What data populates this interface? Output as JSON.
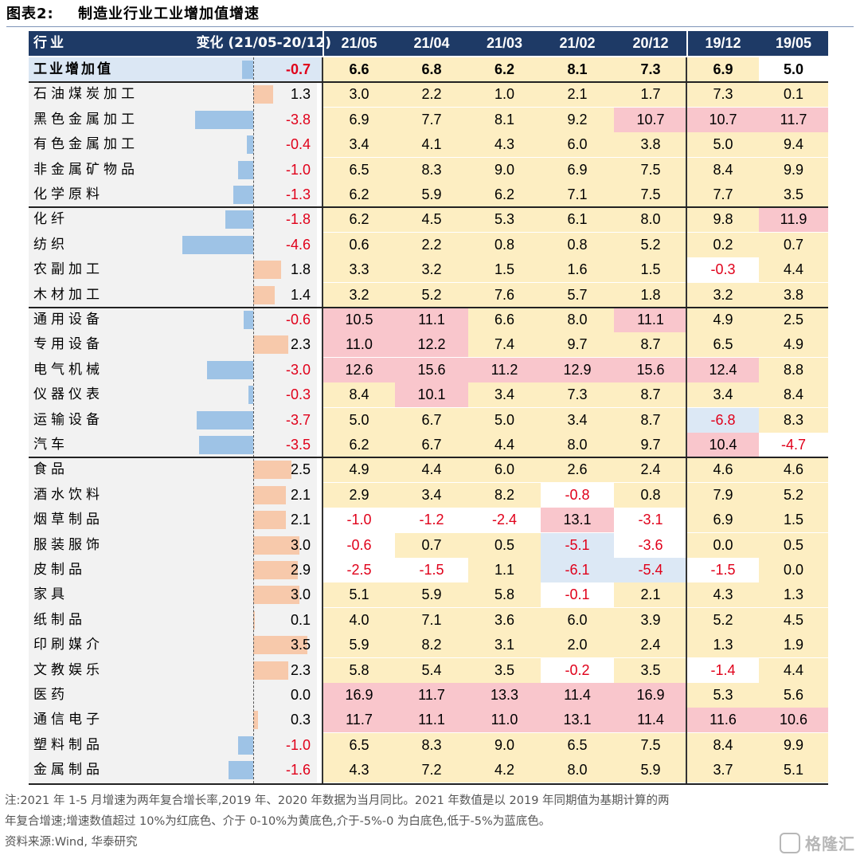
{
  "title": {
    "label": "图表2:",
    "text": "制造业行业工业增加值增速"
  },
  "header": {
    "industry": "行业",
    "change": "变化 (21/05-20/12)",
    "periods": [
      "21/05",
      "21/04",
      "21/03",
      "21/02",
      "20/12",
      "19/12",
      "19/05"
    ]
  },
  "legend_colors": {
    "red": "#f9c6cc",
    "yellow": "#fdeec2",
    "white": "#ffffff",
    "blue": "#dce8f5",
    "bar_positive": "#f7c9ab",
    "bar_negative": "#9ec3e6",
    "header": "#1e3a66",
    "total_row": "#dbe7f4"
  },
  "rows": [
    {
      "name": "工业增加值",
      "change": "-0.7",
      "values": [
        "6.6",
        "6.8",
        "6.2",
        "8.1",
        "7.3",
        "6.9",
        "5.0"
      ]
    },
    {
      "name": "石油煤炭加工",
      "change": "1.3",
      "values": [
        "3.0",
        "2.2",
        "1.0",
        "2.1",
        "1.7",
        "7.3",
        "0.1"
      ]
    },
    {
      "name": "黑色金属加工",
      "change": "-3.8",
      "values": [
        "6.9",
        "7.7",
        "8.1",
        "9.2",
        "10.7",
        "10.7",
        "11.7"
      ]
    },
    {
      "name": "有色金属加工",
      "change": "-0.4",
      "values": [
        "3.4",
        "4.1",
        "4.3",
        "6.0",
        "3.8",
        "5.0",
        "9.4"
      ]
    },
    {
      "name": "非金属矿物品",
      "change": "-1.0",
      "values": [
        "6.5",
        "8.3",
        "9.0",
        "6.9",
        "7.5",
        "8.4",
        "9.9"
      ]
    },
    {
      "name": "化学原料",
      "change": "-1.3",
      "values": [
        "6.2",
        "5.9",
        "6.2",
        "7.1",
        "7.5",
        "7.7",
        "3.5"
      ]
    },
    {
      "name": "化纤",
      "change": "-1.8",
      "values": [
        "6.2",
        "4.5",
        "5.3",
        "6.1",
        "8.0",
        "9.8",
        "11.9"
      ]
    },
    {
      "name": "纺织",
      "change": "-4.6",
      "values": [
        "0.6",
        "2.2",
        "0.8",
        "0.8",
        "5.2",
        "0.2",
        "0.7"
      ]
    },
    {
      "name": "农副加工",
      "change": "1.8",
      "values": [
        "3.3",
        "3.2",
        "1.5",
        "1.6",
        "1.5",
        "-0.3",
        "4.4"
      ]
    },
    {
      "name": "木材加工",
      "change": "1.4",
      "values": [
        "3.2",
        "5.2",
        "7.6",
        "5.7",
        "1.8",
        "3.2",
        "3.8"
      ]
    },
    {
      "name": "通用设备",
      "change": "-0.6",
      "values": [
        "10.5",
        "11.1",
        "6.6",
        "8.0",
        "11.1",
        "4.9",
        "2.5"
      ]
    },
    {
      "name": "专用设备",
      "change": "2.3",
      "values": [
        "11.0",
        "12.2",
        "7.4",
        "9.7",
        "8.7",
        "6.5",
        "4.9"
      ]
    },
    {
      "name": "电气机械",
      "change": "-3.0",
      "values": [
        "12.6",
        "15.6",
        "11.2",
        "12.9",
        "15.6",
        "12.4",
        "8.8"
      ]
    },
    {
      "name": "仪器仪表",
      "change": "-0.3",
      "values": [
        "8.4",
        "10.1",
        "3.4",
        "7.3",
        "8.7",
        "3.4",
        "8.4"
      ]
    },
    {
      "name": "运输设备",
      "change": "-3.7",
      "values": [
        "5.0",
        "6.7",
        "5.0",
        "3.4",
        "8.7",
        "-6.8",
        "8.3"
      ]
    },
    {
      "name": "汽车",
      "change": "-3.5",
      "values": [
        "6.2",
        "6.7",
        "4.4",
        "8.0",
        "9.7",
        "10.4",
        "-4.7"
      ]
    },
    {
      "name": "食品",
      "change": "2.5",
      "values": [
        "4.9",
        "4.4",
        "6.0",
        "2.6",
        "2.4",
        "4.6",
        "4.6"
      ]
    },
    {
      "name": "酒水饮料",
      "change": "2.1",
      "values": [
        "2.9",
        "3.4",
        "8.2",
        "-0.8",
        "0.8",
        "7.9",
        "5.2"
      ]
    },
    {
      "name": "烟草制品",
      "change": "2.1",
      "values": [
        "-1.0",
        "-1.2",
        "-2.4",
        "13.1",
        "-3.1",
        "6.9",
        "1.5"
      ]
    },
    {
      "name": "服装服饰",
      "change": "3.0",
      "values": [
        "-0.6",
        "0.7",
        "0.5",
        "-5.1",
        "-3.6",
        "0.0",
        "0.5"
      ]
    },
    {
      "name": "皮制品",
      "change": "2.9",
      "values": [
        "-2.5",
        "-1.5",
        "1.1",
        "-6.1",
        "-5.4",
        "-1.5",
        "0.0"
      ]
    },
    {
      "name": "家具",
      "change": "3.0",
      "values": [
        "5.1",
        "5.9",
        "5.8",
        "-0.1",
        "2.1",
        "4.3",
        "1.3"
      ]
    },
    {
      "name": "纸制品",
      "change": "0.1",
      "values": [
        "4.0",
        "7.1",
        "3.6",
        "6.0",
        "3.9",
        "5.2",
        "4.5"
      ]
    },
    {
      "name": "印刷媒介",
      "change": "3.5",
      "values": [
        "5.9",
        "8.2",
        "3.1",
        "2.0",
        "2.4",
        "1.3",
        "1.9"
      ]
    },
    {
      "name": "文教娱乐",
      "change": "2.3",
      "values": [
        "5.8",
        "5.4",
        "3.5",
        "-0.2",
        "3.5",
        "-1.4",
        "4.4"
      ]
    },
    {
      "name": "医药",
      "change": "0.0",
      "values": [
        "16.9",
        "11.7",
        "13.3",
        "11.4",
        "16.9",
        "5.3",
        "5.6"
      ]
    },
    {
      "name": "通信电子",
      "change": "0.3",
      "values": [
        "11.7",
        "11.1",
        "11.0",
        "13.1",
        "11.4",
        "11.6",
        "10.6"
      ]
    },
    {
      "name": "塑料制品",
      "change": "-1.0",
      "values": [
        "6.5",
        "8.3",
        "9.0",
        "6.5",
        "7.5",
        "8.4",
        "9.9"
      ]
    },
    {
      "name": "金属制品",
      "change": "-1.6",
      "values": [
        "4.3",
        "7.2",
        "4.2",
        "8.0",
        "5.9",
        "3.7",
        "5.1"
      ]
    }
  ],
  "notes": [
    "注:2021 年 1-5 月增速为两年复合增长率,2019 年、2020 年数据为当月同比。2021 年数值是以 2019 年同期值为基期计算的两",
    "年复合增速;增速数值超过 10%为红底色、介于 0-10%为黄底色,介于-5%-0 为白底色,低于-5%为蓝底色。",
    "资料来源:Wind, 华泰研究"
  ],
  "watermark": "格隆汇"
}
